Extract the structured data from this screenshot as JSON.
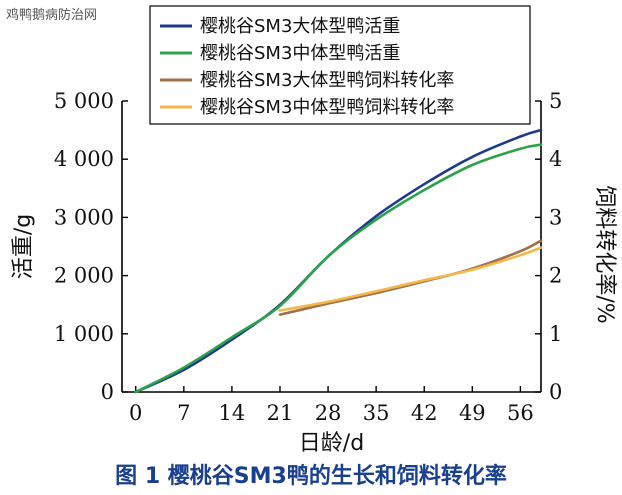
{
  "watermark": "鸡鸭鹅病防治网",
  "caption": "图 1  樱桃谷SM3鸭的生长和饲料转化率",
  "colors": {
    "large_weight": "#1f3a8a",
    "medium_weight": "#2ca24a",
    "large_fcr": "#a0704a",
    "medium_fcr": "#f2b84a"
  },
  "chart_data": {
    "type": "line",
    "xlabel": "日龄/d",
    "ylabel_left": "活重/g",
    "ylabel_right": "饲料转化率/%",
    "x_ticks": [
      0,
      7,
      14,
      21,
      28,
      35,
      42,
      49,
      56
    ],
    "x_tick_labels": [
      "0",
      "7",
      "14",
      "21",
      "28",
      "35",
      "42",
      "49",
      "56"
    ],
    "xlim": [
      -2,
      59
    ],
    "y_left_ticks": [
      0,
      1000,
      2000,
      3000,
      4000,
      5000
    ],
    "y_left_tick_labels": [
      "0",
      "1 000",
      "2 000",
      "3 000",
      "4 000",
      "5 000"
    ],
    "ylim_left": [
      0,
      5000
    ],
    "y_right_ticks": [
      0,
      1,
      2,
      3,
      4,
      5
    ],
    "y_right_tick_labels": [
      "0",
      "1",
      "2",
      "3",
      "4",
      "5"
    ],
    "ylim_right": [
      0,
      5
    ],
    "legend_position": "top-right",
    "series": [
      {
        "name": "樱桃谷SM3大体型鸭活重",
        "axis": "left",
        "x": [
          0,
          7,
          14,
          21,
          28,
          35,
          42,
          49,
          56,
          59
        ],
        "y": [
          0,
          380,
          900,
          1500,
          2330,
          3020,
          3570,
          4040,
          4390,
          4500
        ]
      },
      {
        "name": "樱桃谷SM3中体型鸭活重",
        "axis": "left",
        "x": [
          0,
          7,
          14,
          21,
          28,
          35,
          42,
          49,
          56,
          59
        ],
        "y": [
          0,
          420,
          940,
          1480,
          2330,
          2960,
          3470,
          3900,
          4180,
          4250
        ]
      },
      {
        "name": "樱桃谷SM3大体型鸭饲料转化率",
        "axis": "right",
        "x": [
          21,
          28,
          35,
          42,
          49,
          56,
          59
        ],
        "y": [
          1.33,
          1.52,
          1.7,
          1.9,
          2.12,
          2.42,
          2.6
        ]
      },
      {
        "name": "樱桃谷SM3中体型鸭饲料转化率",
        "axis": "right",
        "x": [
          21,
          28,
          35,
          42,
          49,
          56,
          59
        ],
        "y": [
          1.4,
          1.55,
          1.73,
          1.92,
          2.1,
          2.35,
          2.48
        ]
      }
    ]
  }
}
